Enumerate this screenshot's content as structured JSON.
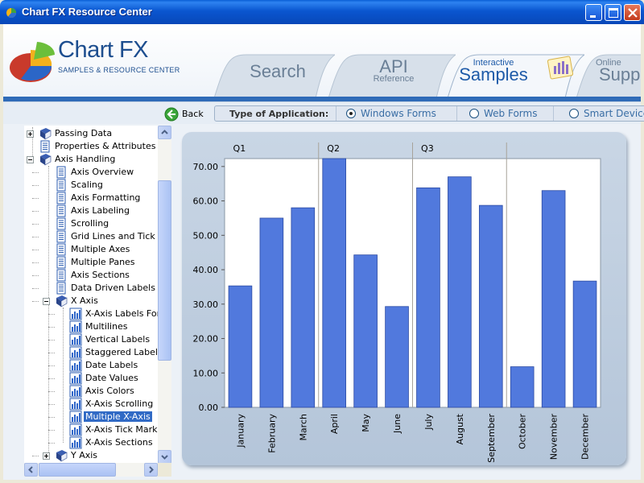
{
  "window": {
    "title": "Chart FX Resource Center",
    "icon": "chart-app-icon",
    "controls": [
      "minimize-icon",
      "maximize-icon",
      "close-icon"
    ]
  },
  "header": {
    "brand": "Chart FX",
    "brand_sub": "SAMPLES & RESOURCE CENTER",
    "tabs": [
      {
        "big": "Search",
        "small": ""
      },
      {
        "big": "API",
        "small": "Reference"
      },
      {
        "big": "Samples",
        "small": "Interactive"
      },
      {
        "big": "Suppo",
        "small": "Online"
      }
    ],
    "active_tab": "Samples"
  },
  "toolbar": {
    "back": "Back",
    "app_type_label": "Type of Application:",
    "options": [
      "Windows Forms",
      "Web Forms",
      "Smart Device"
    ],
    "selected": "Windows Forms"
  },
  "tree": {
    "items": [
      "Passing Data",
      "Properties & Attributes",
      "Axis Handling",
      "Axis Overview",
      "Scaling",
      "Axis Formatting",
      "Axis Labeling",
      "Scrolling",
      "Grid Lines and Tick M",
      "Multiple Axes",
      "Multiple Panes",
      "Axis Sections",
      "Data Driven Labels",
      "X Axis",
      "X-Axis Labels Font",
      "Multilines",
      "Vertical Labels",
      "Staggered Labels",
      "Date Labels",
      "Date Values",
      "Axis Colors",
      "X-Axis Scrolling",
      "Multiple X-Axis",
      "X-Axis Tick Marks",
      "X-Axis Sections",
      "Y Axis"
    ],
    "selected": "Multiple X-Axis"
  },
  "chart_data": {
    "type": "bar",
    "categories": [
      "January",
      "February",
      "March",
      "April",
      "May",
      "June",
      "July",
      "August",
      "September",
      "October",
      "November",
      "December"
    ],
    "values": [
      35.3,
      55.0,
      58.0,
      72.3,
      44.3,
      29.3,
      63.8,
      67.0,
      58.7,
      11.8,
      63.0,
      36.7
    ],
    "secondary_x_axis": {
      "labels": [
        "Q1",
        "Q2",
        "Q3"
      ],
      "group_size": 3
    },
    "y_tick_labels": [
      "0.00",
      "10.00",
      "20.00",
      "30.00",
      "40.00",
      "50.00",
      "60.00",
      "70.00"
    ],
    "ylim": [
      0,
      72.3
    ],
    "bar_color": "#5179dd",
    "grid": false,
    "legend": "none"
  }
}
